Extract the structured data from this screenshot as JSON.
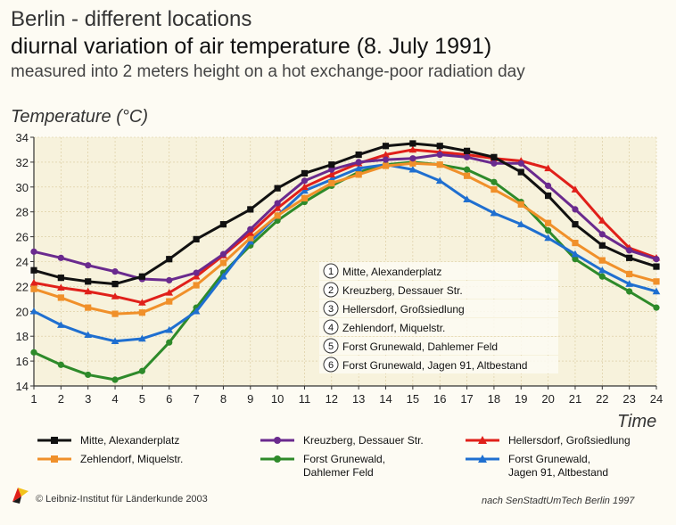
{
  "header": {
    "line1": "Berlin - different locations",
    "line2": "diurnal variation of air temperature (8. July 1991)",
    "line3": "measured into 2 meters height on a hot exchange-poor radiation day"
  },
  "footer": {
    "copyright": "© Leibniz-Institut für Länderkunde 2003",
    "source": "nach SenStadtUmTech Berlin 1997"
  },
  "chart_data": {
    "type": "line",
    "ylabel": "Temperature (°C)",
    "xlabel": "Time",
    "x": [
      1,
      2,
      3,
      4,
      5,
      6,
      7,
      8,
      9,
      10,
      11,
      12,
      13,
      14,
      15,
      16,
      17,
      18,
      19,
      20,
      21,
      22,
      23,
      24
    ],
    "xlim": [
      1,
      24
    ],
    "ylim": [
      14,
      34
    ],
    "yticks": [
      14,
      16,
      18,
      20,
      22,
      24,
      26,
      28,
      30,
      32,
      34
    ],
    "grid": true,
    "legend_placement": "bottom",
    "inset_legend": [
      {
        "num": "1",
        "label": "Mitte, Alexanderplatz"
      },
      {
        "num": "2",
        "label": "Kreuzberg, Dessauer Str."
      },
      {
        "num": "3",
        "label": "Hellersdorf, Großsiedlung"
      },
      {
        "num": "4",
        "label": "Zehlendorf, Miquelstr."
      },
      {
        "num": "5",
        "label": "Forst Grunewald, Dahlemer Feld"
      },
      {
        "num": "6",
        "label": "Forst Grunewald, Jagen 91, Altbestand"
      }
    ],
    "series": [
      {
        "name": "Mitte, Alexanderplatz",
        "color": "#111111",
        "marker": "square",
        "values": [
          23.3,
          22.7,
          22.4,
          22.2,
          22.8,
          24.2,
          25.8,
          27.0,
          28.2,
          29.9,
          31.1,
          31.8,
          32.6,
          33.3,
          33.5,
          33.3,
          32.9,
          32.4,
          31.2,
          29.3,
          27.0,
          25.3,
          24.3,
          23.6
        ]
      },
      {
        "name": "Kreuzberg, Dessauer Str.",
        "color": "#6a2a8e",
        "marker": "circle",
        "values": [
          24.8,
          24.3,
          23.7,
          23.2,
          22.6,
          22.5,
          23.1,
          24.6,
          26.6,
          28.7,
          30.5,
          31.4,
          32.0,
          32.2,
          32.3,
          32.6,
          32.4,
          31.9,
          31.9,
          30.1,
          28.2,
          26.2,
          24.9,
          24.2
        ]
      },
      {
        "name": "Hellersdorf, Großsiedlung",
        "color": "#e0201a",
        "marker": "triangle",
        "values": [
          22.3,
          21.9,
          21.6,
          21.2,
          20.7,
          21.5,
          22.8,
          24.5,
          26.3,
          28.3,
          30.0,
          31.0,
          31.9,
          32.6,
          33.0,
          32.8,
          32.6,
          32.3,
          32.1,
          31.5,
          29.8,
          27.3,
          25.1,
          24.3
        ]
      },
      {
        "name": "Zehlendorf, Miquelstr.",
        "color": "#f0902a",
        "marker": "square",
        "values": [
          21.8,
          21.1,
          20.3,
          19.8,
          19.9,
          20.8,
          22.1,
          23.9,
          25.9,
          27.7,
          29.1,
          30.3,
          31.0,
          31.7,
          31.9,
          31.8,
          30.9,
          29.8,
          28.6,
          27.1,
          25.5,
          24.1,
          23.0,
          22.4
        ]
      },
      {
        "name": "Forst Grunewald,\nDahlemer Feld",
        "color": "#2e8a2a",
        "marker": "circle",
        "values": [
          16.7,
          15.7,
          14.9,
          14.5,
          15.2,
          17.5,
          20.3,
          23.1,
          25.3,
          27.3,
          28.8,
          30.1,
          31.2,
          31.8,
          32.0,
          31.8,
          31.4,
          30.4,
          28.8,
          26.5,
          24.2,
          22.8,
          21.6,
          20.3
        ]
      },
      {
        "name": "Forst Grunewald,\nJagen 91, Altbestand",
        "color": "#1f6fd0",
        "marker": "triangle",
        "values": [
          20.0,
          18.9,
          18.1,
          17.6,
          17.8,
          18.5,
          20.0,
          22.8,
          25.6,
          27.7,
          29.7,
          30.6,
          31.5,
          31.8,
          31.4,
          30.5,
          29.0,
          27.9,
          27.0,
          25.9,
          24.6,
          23.3,
          22.2,
          21.6
        ]
      }
    ]
  }
}
